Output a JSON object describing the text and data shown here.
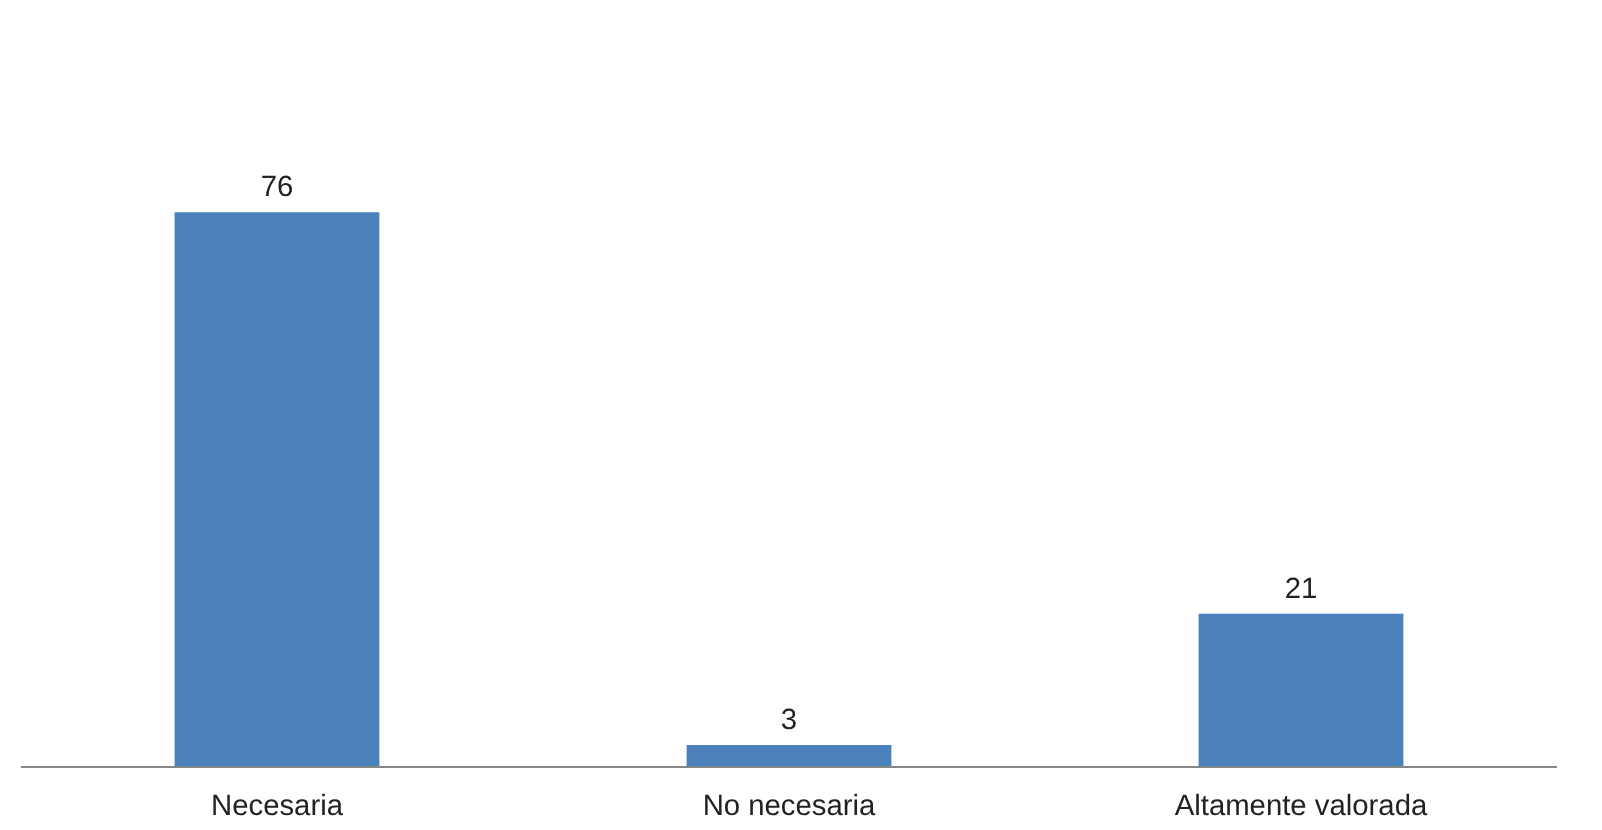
{
  "chart_data": {
    "type": "bar",
    "categories": [
      "Necesaria",
      "No necesaria",
      "Altamente valorada"
    ],
    "values": [
      76,
      3,
      21
    ],
    "color": "#4a81bd",
    "data_labels": true
  }
}
